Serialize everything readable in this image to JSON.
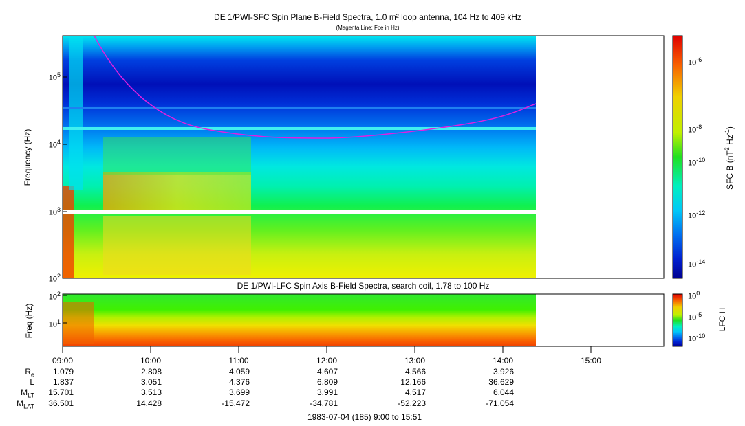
{
  "panels": {
    "top": {
      "title": "DE 1/PWI-SFC  Spin Plane B-Field Spectra, 1.0 m² loop antenna, 104 Hz to 409 kHz",
      "subtitle": "(Magenta Line: Fce in Hz)",
      "ylabel": "Frequency (Hz)",
      "ytick_labels": [
        "10^2",
        "10^3",
        "10^4",
        "10^5"
      ],
      "colorbar_label": "SFC B (nT^2 Hz^-1)",
      "colorbar_ticks": [
        "10^-6",
        "10^-8",
        "10^-10",
        "10^-12",
        "10^-14"
      ]
    },
    "bottom": {
      "title": "DE 1/PWI-LFC  Spin Axis B-Field Spectra, search coil, 1.78 to 100 Hz",
      "ylabel": "Freq (Hz)",
      "ytick_labels": [
        "10^2",
        "10^1"
      ],
      "colorbar_label": "LFC H",
      "colorbar_ticks": [
        "10^0",
        "10^-5",
        "10^-10"
      ]
    }
  },
  "time_axis": {
    "tick_labels": [
      "09:00",
      "10:00",
      "11:00",
      "12:00",
      "13:00",
      "14:00",
      "15:00"
    ],
    "footer": "1983-07-04 (185) 9:00 to 15:51"
  },
  "ephemeris": {
    "rows": [
      {
        "label": "R",
        "sub": "e",
        "values": [
          "1.079",
          "2.808",
          "4.059",
          "4.607",
          "4.566",
          "3.926"
        ]
      },
      {
        "label": "L",
        "sub": "",
        "values": [
          "1.837",
          "3.051",
          "4.376",
          "6.809",
          "12.166",
          "36.629"
        ]
      },
      {
        "label": "M",
        "sub": "LT",
        "values": [
          "15.701",
          "3.513",
          "3.699",
          "3.991",
          "4.517",
          "6.044"
        ]
      },
      {
        "label": "M",
        "sub": "LAT",
        "values": [
          "36.501",
          "14.428",
          "-15.472",
          "-34.781",
          "-52.223",
          "-71.054"
        ]
      }
    ]
  },
  "chart_data": [
    {
      "type": "heatmap",
      "title": "DE 1/PWI-SFC  Spin Plane B-Field Spectra, 1.0 m² loop antenna, 104 Hz to 409 kHz",
      "subtitle": "(Magenta Line: Fce in Hz)",
      "xlabel": "",
      "ylabel": "Frequency (Hz)",
      "yscale": "log",
      "xlim": [
        "09:00",
        "15:51"
      ],
      "ylim": [
        100,
        409000
      ],
      "data_end_time": "14:23",
      "colorbar": {
        "label": "SFC B (nT^2 Hz^-1)",
        "scale": "log",
        "range": [
          1e-15,
          1e-05
        ]
      },
      "fce_line": {
        "color": "#e020e0",
        "times": [
          "09:20",
          "09:40",
          "10:00",
          "10:30",
          "11:00",
          "11:30",
          "12:00",
          "12:30",
          "13:00",
          "13:30",
          "14:00",
          "14:23"
        ],
        "values_hz": [
          409000,
          110000,
          50000,
          24000,
          15500,
          12800,
          12200,
          13000,
          15500,
          20000,
          28000,
          36000
        ]
      }
    },
    {
      "type": "heatmap",
      "title": "DE 1/PWI-LFC  Spin Axis B-Field Spectra, search coil, 1.78 to 100 Hz",
      "xlabel": "",
      "ylabel": "Freq (Hz)",
      "yscale": "log",
      "xlim": [
        "09:00",
        "15:51"
      ],
      "ylim": [
        1.78,
        100
      ],
      "data_end_time": "14:23",
      "colorbar": {
        "label": "LFC H",
        "scale": "log",
        "range": [
          1e-12,
          1
        ]
      }
    }
  ],
  "colors": {
    "magenta_line": "#e020e0"
  }
}
